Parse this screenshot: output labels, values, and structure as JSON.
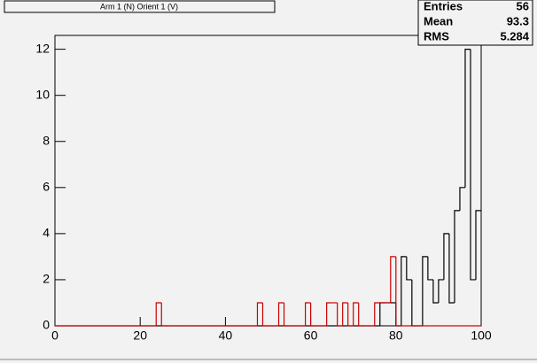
{
  "chart_data": {
    "type": "histogram",
    "title": "Arm 1 (N) Orient 1 (V)",
    "bins": [
      0,
      1.25,
      2.5,
      3.75,
      5,
      6.25,
      7.5,
      8.75,
      10,
      11.25,
      12.5,
      13.75,
      15,
      16.25,
      17.5,
      18.75,
      20,
      21.25,
      22.5,
      23.75,
      25,
      26.25,
      27.5,
      28.75,
      30,
      31.25,
      32.5,
      33.75,
      35,
      36.25,
      37.5,
      38.75,
      40,
      41.25,
      42.5,
      43.75,
      45,
      46.25,
      47.5,
      48.75,
      50,
      51.25,
      52.5,
      53.75,
      55,
      56.25,
      57.5,
      58.75,
      60,
      61.25,
      62.5,
      63.75,
      65,
      66.25,
      67.5,
      68.75,
      70,
      71.25,
      72.5,
      73.75,
      75,
      76.25,
      77.5,
      78.75,
      80,
      81.25,
      82.5,
      83.75,
      85,
      86.25,
      87.5,
      88.75,
      90,
      91.25,
      92.5,
      93.75,
      95,
      96.25,
      97.5,
      98.75,
      100
    ],
    "series": [
      {
        "color": "#000000",
        "values": [
          0,
          0,
          0,
          0,
          0,
          0,
          0,
          0,
          0,
          0,
          0,
          0,
          0,
          0,
          0,
          0,
          0,
          0,
          0,
          0,
          0,
          0,
          0,
          0,
          0,
          0,
          0,
          0,
          0,
          0,
          0,
          0,
          0,
          0,
          0,
          0,
          0,
          0,
          0,
          0,
          0,
          0,
          0,
          0,
          0,
          0,
          0,
          0,
          0,
          0,
          0,
          0,
          0,
          0,
          0,
          0,
          0,
          0,
          0,
          0,
          0,
          1,
          1,
          1,
          0,
          3,
          2,
          0,
          0,
          3,
          2,
          1,
          2,
          4,
          1,
          5,
          6,
          12,
          2,
          5
        ]
      },
      {
        "color": "#cc0000",
        "values": [
          0,
          0,
          0,
          0,
          0,
          0,
          0,
          0,
          0,
          0,
          0,
          0,
          0,
          0,
          0,
          0,
          0,
          0,
          0,
          1,
          0,
          0,
          0,
          0,
          0,
          0,
          0,
          0,
          0,
          0,
          0,
          0,
          0,
          0,
          0,
          0,
          0,
          0,
          1,
          0,
          0,
          0,
          1,
          0,
          0,
          0,
          0,
          1,
          0,
          0,
          0,
          1,
          1,
          0,
          1,
          0,
          1,
          0,
          0,
          0,
          1,
          1,
          1,
          3,
          0,
          0,
          0,
          0,
          0,
          0,
          0,
          0,
          0,
          0,
          0,
          0,
          0,
          0,
          0,
          0
        ]
      }
    ],
    "xlim": [
      0,
      100
    ],
    "xticks": [
      0,
      20,
      40,
      60,
      80,
      100
    ],
    "ylim": [
      0,
      12.6
    ],
    "yticks": [
      0,
      2,
      4,
      6,
      8,
      10,
      12
    ],
    "stats": [
      {
        "label": "Entries",
        "value": 56
      },
      {
        "label": "Mean",
        "value": 93.3
      },
      {
        "label": "RMS",
        "value": 5.284
      }
    ]
  }
}
